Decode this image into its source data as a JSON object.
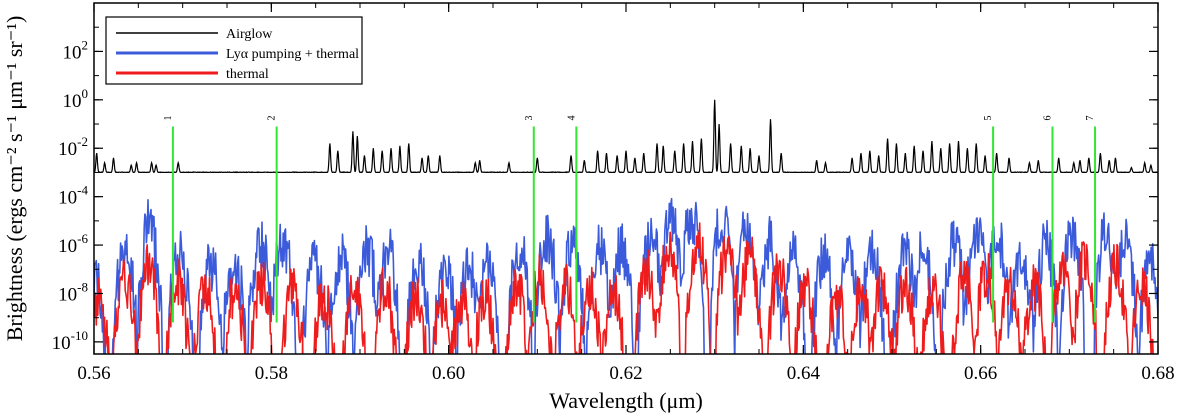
{
  "chart_data": {
    "type": "line",
    "xlabel": "Wavelength (μm)",
    "ylabel": "Brightness (ergs cm⁻² s⁻¹ μm⁻¹ sr⁻¹)",
    "xlim": [
      0.56,
      0.68
    ],
    "ylim_log10": [
      -10.5,
      4.0
    ],
    "y_scale": "log",
    "x_ticks": [
      0.56,
      0.58,
      0.6,
      0.62,
      0.64,
      0.66,
      0.68
    ],
    "x_tick_labels": [
      "0.56",
      "0.58",
      "0.60",
      "0.62",
      "0.64",
      "0.66",
      "0.68"
    ],
    "y_ticks_log10": [
      2,
      0,
      -2,
      -4,
      -6,
      -8,
      -10
    ],
    "y_tick_labels": [
      {
        "base": "10",
        "exp": "2"
      },
      {
        "base": "10",
        "exp": "0"
      },
      {
        "base": "10",
        "exp": "-2"
      },
      {
        "base": "10",
        "exp": "-4"
      },
      {
        "base": "10",
        "exp": "-6"
      },
      {
        "base": "10",
        "exp": "-8"
      },
      {
        "base": "10",
        "exp": "-10"
      }
    ],
    "legend_position": "top-left",
    "series": [
      {
        "name": "Airglow",
        "color": "#000000",
        "baseline_log10": -3.0,
        "peaks": [
          [
            0.5603,
            -2.2
          ],
          [
            0.5612,
            -2.6
          ],
          [
            0.5622,
            -2.4
          ],
          [
            0.5642,
            -2.7
          ],
          [
            0.5648,
            -2.6
          ],
          [
            0.5665,
            -2.6
          ],
          [
            0.567,
            -2.7
          ],
          [
            0.5695,
            -2.6
          ],
          [
            0.5866,
            -1.8
          ],
          [
            0.5875,
            -2.1
          ],
          [
            0.5892,
            -1.3
          ],
          [
            0.5897,
            -1.5
          ],
          [
            0.5905,
            -2.3
          ],
          [
            0.5915,
            -2.0
          ],
          [
            0.5925,
            -2.1
          ],
          [
            0.5935,
            -2.0
          ],
          [
            0.5945,
            -1.9
          ],
          [
            0.5955,
            -1.8
          ],
          [
            0.597,
            -2.4
          ],
          [
            0.5977,
            -2.3
          ],
          [
            0.599,
            -2.3
          ],
          [
            0.603,
            -2.6
          ],
          [
            0.6035,
            -2.5
          ],
          [
            0.6068,
            -2.6
          ],
          [
            0.61,
            -2.4
          ],
          [
            0.6138,
            -2.3
          ],
          [
            0.6153,
            -2.5
          ],
          [
            0.6168,
            -2.1
          ],
          [
            0.6178,
            -2.2
          ],
          [
            0.619,
            -2.3
          ],
          [
            0.62,
            -2.1
          ],
          [
            0.621,
            -2.4
          ],
          [
            0.622,
            -2.2
          ],
          [
            0.6235,
            -1.8
          ],
          [
            0.6242,
            -1.9
          ],
          [
            0.6255,
            -2.1
          ],
          [
            0.6265,
            -1.8
          ],
          [
            0.6275,
            -1.7
          ],
          [
            0.6285,
            -1.6
          ],
          [
            0.63,
            0.0
          ],
          [
            0.6305,
            -1.0
          ],
          [
            0.6318,
            -1.8
          ],
          [
            0.633,
            -1.9
          ],
          [
            0.634,
            -2.0
          ],
          [
            0.635,
            -2.3
          ],
          [
            0.6363,
            -0.8
          ],
          [
            0.6375,
            -2.2
          ],
          [
            0.6415,
            -2.5
          ],
          [
            0.6425,
            -2.6
          ],
          [
            0.6455,
            -2.4
          ],
          [
            0.6465,
            -2.2
          ],
          [
            0.6475,
            -2.1
          ],
          [
            0.6485,
            -2.3
          ],
          [
            0.6495,
            -1.6
          ],
          [
            0.6505,
            -1.8
          ],
          [
            0.6515,
            -2.2
          ],
          [
            0.6525,
            -1.9
          ],
          [
            0.6535,
            -2.1
          ],
          [
            0.6545,
            -1.7
          ],
          [
            0.6555,
            -2.0
          ],
          [
            0.6565,
            -1.8
          ],
          [
            0.6575,
            -1.7
          ],
          [
            0.6585,
            -2.0
          ],
          [
            0.6595,
            -1.8
          ],
          [
            0.6605,
            -2.3
          ],
          [
            0.6618,
            -2.2
          ],
          [
            0.6632,
            -2.4
          ],
          [
            0.6655,
            -2.6
          ],
          [
            0.6665,
            -2.5
          ],
          [
            0.6688,
            -2.4
          ],
          [
            0.6705,
            -2.6
          ],
          [
            0.6712,
            -2.5
          ],
          [
            0.6722,
            -2.4
          ],
          [
            0.6735,
            -2.2
          ],
          [
            0.6745,
            -2.5
          ],
          [
            0.6752,
            -2.4
          ],
          [
            0.677,
            -2.8
          ],
          [
            0.6785,
            -2.6
          ],
          [
            0.6792,
            -2.7
          ]
        ]
      },
      {
        "name": "Lyα pumping + thermal",
        "color": "#3b5bdb",
        "envelope_log10": [
          [
            0.56,
            -7.5
          ],
          [
            0.566,
            -5.0
          ],
          [
            0.57,
            -6.5
          ],
          [
            0.575,
            -7.0
          ],
          [
            0.58,
            -5.5
          ],
          [
            0.585,
            -6.8
          ],
          [
            0.592,
            -6.0
          ],
          [
            0.6,
            -7.0
          ],
          [
            0.605,
            -6.8
          ],
          [
            0.61,
            -5.5
          ],
          [
            0.615,
            -6.0
          ],
          [
            0.62,
            -6.2
          ],
          [
            0.625,
            -5.0
          ],
          [
            0.628,
            -4.8
          ],
          [
            0.632,
            -5.0
          ],
          [
            0.637,
            -6.0
          ],
          [
            0.643,
            -6.5
          ],
          [
            0.65,
            -6.2
          ],
          [
            0.655,
            -6.3
          ],
          [
            0.66,
            -5.3
          ],
          [
            0.665,
            -6.5
          ],
          [
            0.67,
            -5.5
          ],
          [
            0.673,
            -5.2
          ],
          [
            0.677,
            -6.0
          ],
          [
            0.68,
            -7.0
          ]
        ]
      },
      {
        "name": "thermal",
        "color": "#ee1c1c",
        "envelope_log10": [
          [
            0.56,
            -8.5
          ],
          [
            0.566,
            -6.8
          ],
          [
            0.57,
            -7.6
          ],
          [
            0.575,
            -8.0
          ],
          [
            0.58,
            -7.4
          ],
          [
            0.585,
            -8.2
          ],
          [
            0.592,
            -7.6
          ],
          [
            0.6,
            -8.5
          ],
          [
            0.605,
            -8.0
          ],
          [
            0.61,
            -7.3
          ],
          [
            0.615,
            -7.8
          ],
          [
            0.62,
            -7.8
          ],
          [
            0.625,
            -6.2
          ],
          [
            0.628,
            -5.8
          ],
          [
            0.632,
            -6.2
          ],
          [
            0.637,
            -7.0
          ],
          [
            0.643,
            -8.3
          ],
          [
            0.65,
            -7.6
          ],
          [
            0.655,
            -7.8
          ],
          [
            0.66,
            -7.0
          ],
          [
            0.665,
            -8.0
          ],
          [
            0.67,
            -6.8
          ],
          [
            0.673,
            -6.5
          ],
          [
            0.677,
            -7.2
          ],
          [
            0.68,
            -8.5
          ]
        ]
      }
    ],
    "marked_lines": [
      {
        "label": "1",
        "x": 0.5689
      },
      {
        "label": "2",
        "x": 0.5806
      },
      {
        "label": "3",
        "x": 0.6096
      },
      {
        "label": "4",
        "x": 0.6144
      },
      {
        "label": "5",
        "x": 0.6614
      },
      {
        "label": "6",
        "x": 0.6681
      },
      {
        "label": "7",
        "x": 0.6729
      }
    ],
    "marked_line_color": "#33e633",
    "marked_line_range_log10": [
      -9.2,
      -1.1
    ]
  }
}
